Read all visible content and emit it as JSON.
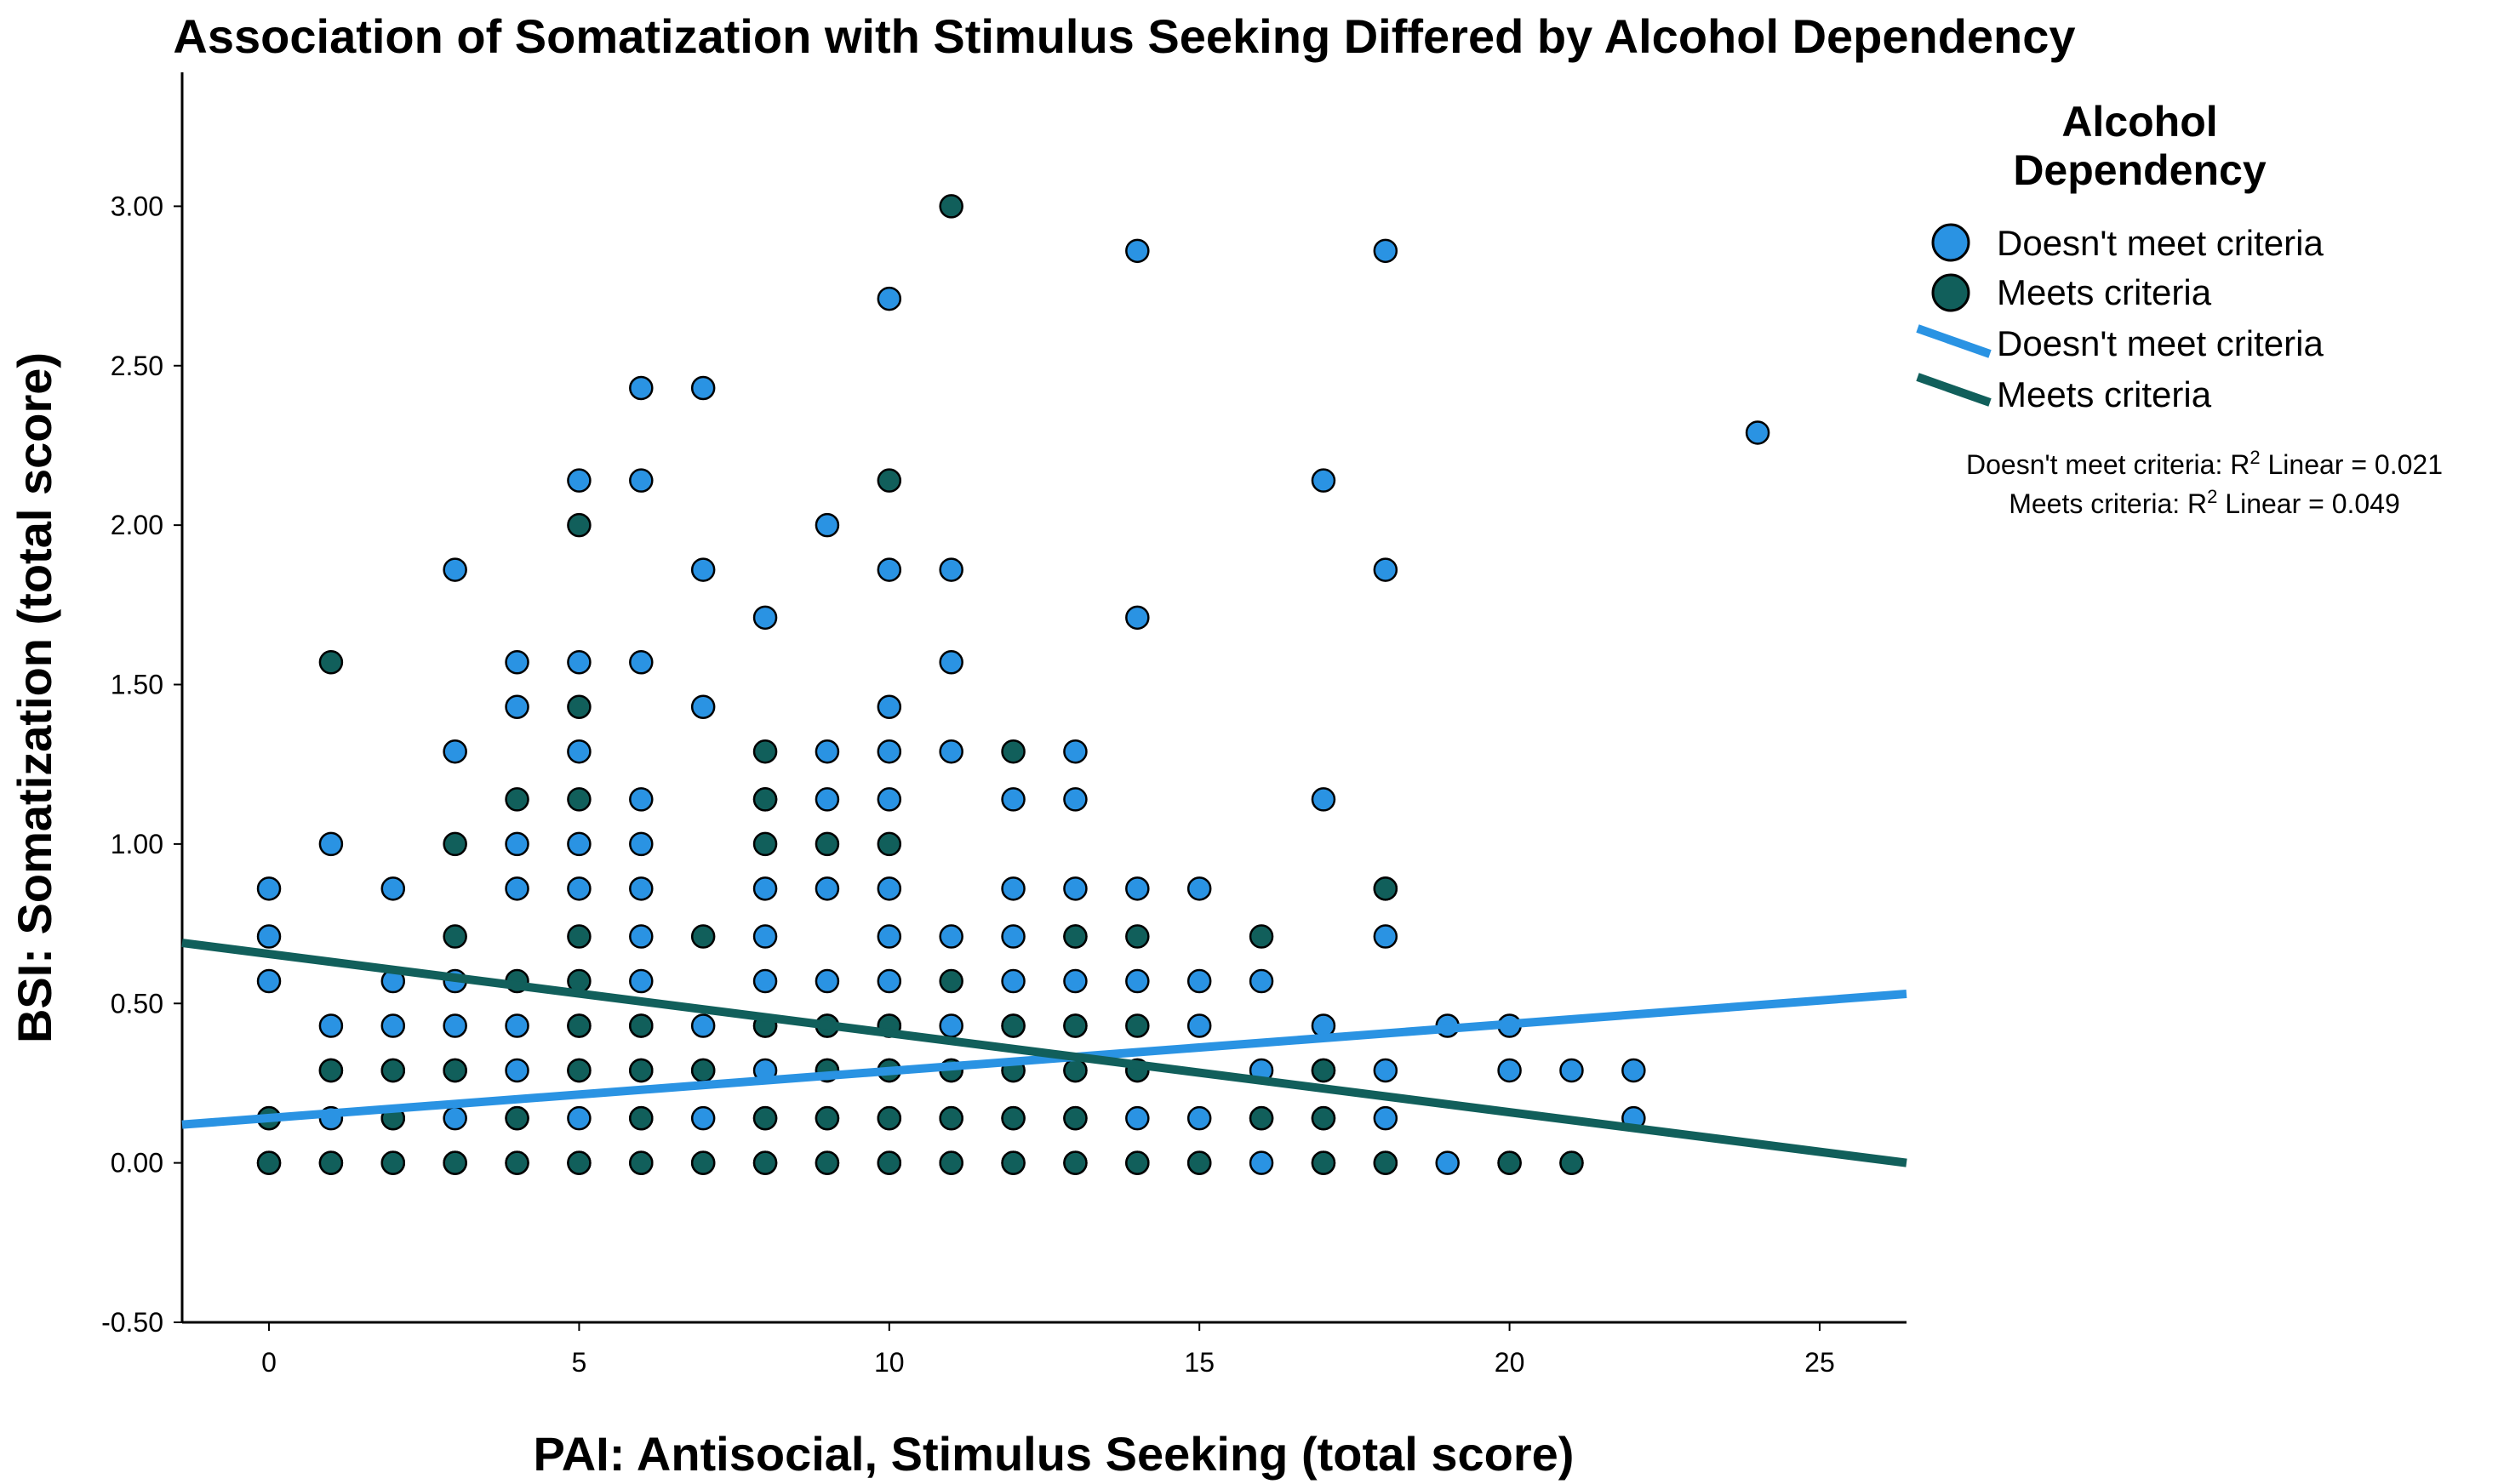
{
  "chart_data": {
    "type": "scatter",
    "title": "Association of Somatization with Stimulus Seeking Differed by Alcohol Dependency",
    "xlabel": "PAI: Antisocial, Stimulus Seeking (total score)",
    "ylabel": "BSI: Somatization (total score)",
    "xlim": [
      -1.4,
      26.4
    ],
    "ylim": [
      -0.5,
      3.42
    ],
    "xticks": [
      0,
      5,
      10,
      15,
      20,
      25
    ],
    "yticks": [
      -0.5,
      0,
      0.5,
      1,
      1.5,
      2,
      2.5,
      3
    ],
    "ytick_labels": [
      "-0.50",
      "0.00",
      "0.50",
      "1.00",
      "1.50",
      "2.00",
      "2.50",
      "3.00"
    ],
    "xtick_labels": [
      "0",
      "5",
      "10",
      "15",
      "20",
      "25"
    ],
    "grid": false,
    "legend": {
      "title": "Alcohol Dependency",
      "title_lines": [
        "Alcohol",
        "Dependency"
      ],
      "placement": "top-right",
      "point_labels": [
        "Doesn't meet criteria",
        "Meets criteria"
      ],
      "line_labels": [
        "Doesn't meet criteria",
        "Meets criteria"
      ]
    },
    "r_squared": [
      {
        "prefix": "Doesn't meet criteria: R",
        "sup": "2",
        "suffix": " Linear = 0.021"
      },
      {
        "prefix": "Meets criteria: R",
        "sup": "2",
        "suffix": " Linear = 0.049"
      }
    ],
    "series": [
      {
        "name": "Doesn't meet criteria",
        "color": "#2a93e3",
        "points": [
          [
            0,
            0.86
          ],
          [
            0,
            0.71
          ],
          [
            0,
            0.57
          ],
          [
            0,
            0.14
          ],
          [
            0,
            0
          ],
          [
            1,
            1
          ],
          [
            1,
            0.43
          ],
          [
            1,
            0.29
          ],
          [
            1,
            0.14
          ],
          [
            1,
            0
          ],
          [
            2,
            0.86
          ],
          [
            2,
            0.57
          ],
          [
            2,
            0.43
          ],
          [
            2,
            0.29
          ],
          [
            2,
            0.14
          ],
          [
            2,
            0
          ],
          [
            3,
            1.86
          ],
          [
            3,
            1.29
          ],
          [
            3,
            0.57
          ],
          [
            3,
            0.43
          ],
          [
            3,
            0.29
          ],
          [
            3,
            0.14
          ],
          [
            3,
            0
          ],
          [
            4,
            1.57
          ],
          [
            4,
            1.43
          ],
          [
            4,
            1
          ],
          [
            4,
            0.86
          ],
          [
            4,
            0.43
          ],
          [
            4,
            0.29
          ],
          [
            4,
            0.14
          ],
          [
            4,
            0
          ],
          [
            5,
            2.14
          ],
          [
            5,
            1.57
          ],
          [
            5,
            1.29
          ],
          [
            5,
            1
          ],
          [
            5,
            0.86
          ],
          [
            5,
            0.43
          ],
          [
            5,
            0.29
          ],
          [
            5,
            0.14
          ],
          [
            5,
            0
          ],
          [
            6,
            2.43
          ],
          [
            6,
            2.14
          ],
          [
            6,
            1.57
          ],
          [
            6,
            1.14
          ],
          [
            6,
            1
          ],
          [
            6,
            0.86
          ],
          [
            6,
            0.71
          ],
          [
            6,
            0.57
          ],
          [
            6,
            0.43
          ],
          [
            6,
            0.29
          ],
          [
            6,
            0.14
          ],
          [
            6,
            0
          ],
          [
            7,
            2.43
          ],
          [
            7,
            1.86
          ],
          [
            7,
            1.43
          ],
          [
            7,
            0.43
          ],
          [
            7,
            0.29
          ],
          [
            7,
            0.14
          ],
          [
            7,
            0
          ],
          [
            8,
            1.71
          ],
          [
            8,
            1.14
          ],
          [
            8,
            0.86
          ],
          [
            8,
            0.71
          ],
          [
            8,
            0.57
          ],
          [
            8,
            0.43
          ],
          [
            8,
            0.29
          ],
          [
            8,
            0.14
          ],
          [
            8,
            0
          ],
          [
            9,
            2
          ],
          [
            9,
            1.29
          ],
          [
            9,
            1.14
          ],
          [
            9,
            0.86
          ],
          [
            9,
            0.57
          ],
          [
            9,
            0.43
          ],
          [
            9,
            0.29
          ],
          [
            9,
            0.14
          ],
          [
            9,
            0
          ],
          [
            10,
            2.71
          ],
          [
            10,
            1.86
          ],
          [
            10,
            1.43
          ],
          [
            10,
            1.29
          ],
          [
            10,
            1.14
          ],
          [
            10,
            0.86
          ],
          [
            10,
            0.71
          ],
          [
            10,
            0.57
          ],
          [
            10,
            0.43
          ],
          [
            10,
            0.29
          ],
          [
            10,
            0.14
          ],
          [
            10,
            0
          ],
          [
            11,
            1.86
          ],
          [
            11,
            1.57
          ],
          [
            11,
            1.29
          ],
          [
            11,
            0.71
          ],
          [
            11,
            0.43
          ],
          [
            11,
            0.29
          ],
          [
            11,
            0.14
          ],
          [
            11,
            0
          ],
          [
            12,
            1.14
          ],
          [
            12,
            0.86
          ],
          [
            12,
            0.71
          ],
          [
            12,
            0.57
          ],
          [
            12,
            0.43
          ],
          [
            12,
            0.29
          ],
          [
            12,
            0.14
          ],
          [
            12,
            0
          ],
          [
            13,
            1.29
          ],
          [
            13,
            1.14
          ],
          [
            13,
            0.86
          ],
          [
            13,
            0.71
          ],
          [
            13,
            0.57
          ],
          [
            13,
            0.43
          ],
          [
            13,
            0.29
          ],
          [
            13,
            0.14
          ],
          [
            13,
            0
          ],
          [
            14,
            2.86
          ],
          [
            14,
            1.71
          ],
          [
            14,
            0.86
          ],
          [
            14,
            0.57
          ],
          [
            14,
            0.29
          ],
          [
            14,
            0.14
          ],
          [
            14,
            0
          ],
          [
            15,
            0.86
          ],
          [
            15,
            0.57
          ],
          [
            15,
            0.43
          ],
          [
            15,
            0.14
          ],
          [
            15,
            0
          ],
          [
            16,
            0.57
          ],
          [
            16,
            0.29
          ],
          [
            16,
            0.14
          ],
          [
            16,
            0
          ],
          [
            17,
            2.14
          ],
          [
            17,
            1.14
          ],
          [
            17,
            0.43
          ],
          [
            17,
            0.29
          ],
          [
            17,
            0.14
          ],
          [
            17,
            0
          ],
          [
            18,
            2.86
          ],
          [
            18,
            1.86
          ],
          [
            18,
            0.86
          ],
          [
            18,
            0.71
          ],
          [
            18,
            0.29
          ],
          [
            18,
            0.14
          ],
          [
            18,
            0
          ],
          [
            19,
            0.43
          ],
          [
            19,
            0
          ],
          [
            20,
            0.43
          ],
          [
            20,
            0.29
          ],
          [
            20,
            0
          ],
          [
            21,
            0.29
          ],
          [
            21,
            0
          ],
          [
            22,
            0.29
          ],
          [
            22,
            0.14
          ],
          [
            24,
            2.29
          ]
        ],
        "fit": {
          "x": [
            -1.4,
            26.4
          ],
          "y": [
            0.12,
            0.53
          ]
        }
      },
      {
        "name": "Meets criteria",
        "color": "#115f5b",
        "points": [
          [
            0,
            0.14
          ],
          [
            0,
            0
          ],
          [
            1,
            1.57
          ],
          [
            1,
            0.29
          ],
          [
            1,
            0
          ],
          [
            2,
            0.29
          ],
          [
            2,
            0.14
          ],
          [
            2,
            0
          ],
          [
            3,
            1
          ],
          [
            3,
            0.71
          ],
          [
            3,
            0.29
          ],
          [
            3,
            0
          ],
          [
            4,
            1.14
          ],
          [
            4,
            0.57
          ],
          [
            4,
            0.14
          ],
          [
            4,
            0
          ],
          [
            5,
            2
          ],
          [
            5,
            1.43
          ],
          [
            5,
            1.14
          ],
          [
            5,
            0.71
          ],
          [
            5,
            0.57
          ],
          [
            5,
            0.43
          ],
          [
            5,
            0.29
          ],
          [
            5,
            0
          ],
          [
            6,
            0.43
          ],
          [
            6,
            0.29
          ],
          [
            6,
            0.14
          ],
          [
            6,
            0
          ],
          [
            7,
            0.71
          ],
          [
            7,
            0.29
          ],
          [
            7,
            0
          ],
          [
            8,
            1.29
          ],
          [
            8,
            1.14
          ],
          [
            8,
            1
          ],
          [
            8,
            0.43
          ],
          [
            8,
            0.14
          ],
          [
            8,
            0
          ],
          [
            9,
            1
          ],
          [
            9,
            0.43
          ],
          [
            9,
            0.29
          ],
          [
            9,
            0.14
          ],
          [
            9,
            0
          ],
          [
            10,
            2.14
          ],
          [
            10,
            1
          ],
          [
            10,
            0.43
          ],
          [
            10,
            0.29
          ],
          [
            10,
            0.14
          ],
          [
            10,
            0
          ],
          [
            11,
            3
          ],
          [
            11,
            0.57
          ],
          [
            11,
            0.29
          ],
          [
            11,
            0.14
          ],
          [
            11,
            0
          ],
          [
            12,
            1.29
          ],
          [
            12,
            0.43
          ],
          [
            12,
            0.29
          ],
          [
            12,
            0.14
          ],
          [
            12,
            0
          ],
          [
            13,
            0.71
          ],
          [
            13,
            0.43
          ],
          [
            13,
            0.29
          ],
          [
            13,
            0.14
          ],
          [
            13,
            0
          ],
          [
            14,
            0.71
          ],
          [
            14,
            0.43
          ],
          [
            14,
            0.29
          ],
          [
            14,
            0
          ],
          [
            15,
            0
          ],
          [
            16,
            0.71
          ],
          [
            16,
            0.14
          ],
          [
            17,
            0.29
          ],
          [
            17,
            0.14
          ],
          [
            17,
            0
          ],
          [
            18,
            0.86
          ],
          [
            18,
            0
          ],
          [
            20,
            0
          ],
          [
            21,
            0
          ]
        ],
        "fit": {
          "x": [
            -1.4,
            26.4
          ],
          "y": [
            0.69,
            0.0
          ]
        }
      }
    ]
  }
}
